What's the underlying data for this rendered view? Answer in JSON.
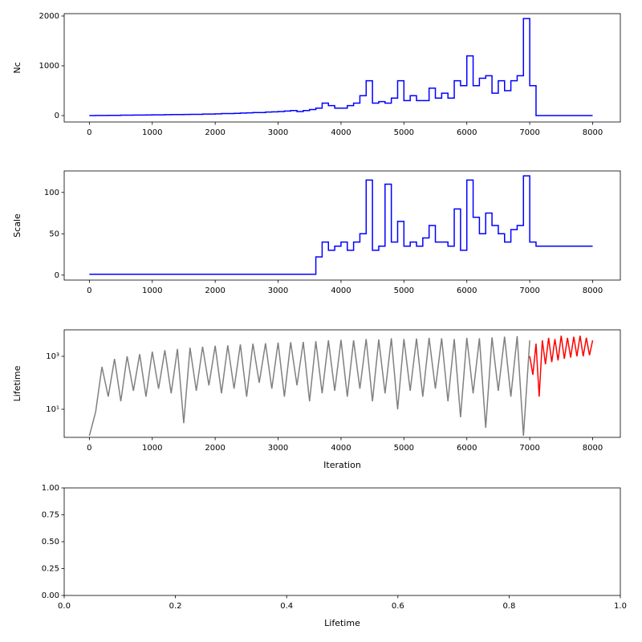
{
  "chart_data": [
    {
      "type": "line",
      "ylabel": "Nc",
      "drawstyle": "steps-post",
      "xlim": [
        -400,
        8440
      ],
      "ylim": [
        -129,
        2048
      ],
      "xticks": [
        0,
        1000,
        2000,
        3000,
        4000,
        5000,
        6000,
        7000,
        8000
      ],
      "yticks": [
        0,
        1000,
        2000
      ],
      "series": [
        {
          "color": "#0000ff",
          "x": [
            0,
            100,
            200,
            300,
            400,
            500,
            600,
            700,
            800,
            900,
            1000,
            1100,
            1200,
            1300,
            1400,
            1500,
            1600,
            1700,
            1800,
            1900,
            2000,
            2100,
            2200,
            2300,
            2400,
            2500,
            2600,
            2700,
            2800,
            2900,
            3000,
            3100,
            3200,
            3300,
            3400,
            3500,
            3600,
            3700,
            3800,
            3900,
            4000,
            4100,
            4200,
            4300,
            4400,
            4500,
            4600,
            4700,
            4800,
            4900,
            5000,
            5100,
            5200,
            5300,
            5400,
            5500,
            5600,
            5700,
            5800,
            5900,
            6000,
            6100,
            6200,
            6300,
            6400,
            6500,
            6600,
            6700,
            6800,
            6900,
            7000,
            7100,
            7200,
            7300,
            7400,
            7500,
            7600,
            7700,
            7800,
            7900,
            8000
          ],
          "values": [
            0,
            2,
            3,
            5,
            5,
            8,
            8,
            10,
            10,
            12,
            15,
            15,
            18,
            20,
            20,
            22,
            25,
            25,
            30,
            30,
            35,
            40,
            40,
            45,
            50,
            55,
            60,
            60,
            70,
            75,
            80,
            90,
            100,
            80,
            100,
            120,
            150,
            250,
            200,
            150,
            150,
            200,
            250,
            400,
            700,
            250,
            280,
            250,
            350,
            700,
            300,
            400,
            300,
            300,
            550,
            350,
            450,
            350,
            700,
            600,
            1200,
            600,
            750,
            800,
            450,
            700,
            500,
            700,
            800,
            1950,
            600,
            0,
            0,
            0,
            0,
            0,
            0,
            0,
            0,
            0,
            0
          ]
        }
      ]
    },
    {
      "type": "line",
      "ylabel": "Scale",
      "drawstyle": "steps-post",
      "xlim": [
        -400,
        8440
      ],
      "ylim": [
        -6,
        126
      ],
      "xticks": [
        0,
        1000,
        2000,
        3000,
        4000,
        5000,
        6000,
        7000,
        8000
      ],
      "yticks": [
        0,
        50,
        100
      ],
      "series": [
        {
          "color": "#0000ff",
          "x": [
            0,
            100,
            200,
            300,
            400,
            500,
            600,
            700,
            800,
            900,
            1000,
            1100,
            1200,
            1300,
            1400,
            1500,
            1600,
            1700,
            1800,
            1900,
            2000,
            2100,
            2200,
            2300,
            2400,
            2500,
            2600,
            2700,
            2800,
            2900,
            3000,
            3100,
            3200,
            3300,
            3400,
            3500,
            3600,
            3700,
            3800,
            3900,
            4000,
            4100,
            4200,
            4300,
            4400,
            4500,
            4600,
            4700,
            4800,
            4900,
            5000,
            5100,
            5200,
            5300,
            5400,
            5500,
            5600,
            5700,
            5800,
            5900,
            6000,
            6100,
            6200,
            6300,
            6400,
            6500,
            6600,
            6700,
            6800,
            6900,
            7000,
            7100,
            7200,
            7300,
            7400,
            7500,
            7600,
            7700,
            7800,
            7900,
            8000
          ],
          "values": [
            1,
            1,
            1,
            1,
            1,
            1,
            1,
            1,
            1,
            1,
            1,
            1,
            1,
            1,
            1,
            1,
            1,
            1,
            1,
            1,
            1,
            1,
            1,
            1,
            1,
            1,
            1,
            1,
            1,
            1,
            1,
            1,
            1,
            1,
            1,
            1,
            22,
            40,
            30,
            35,
            40,
            30,
            40,
            50,
            115,
            30,
            35,
            110,
            40,
            65,
            35,
            40,
            35,
            45,
            60,
            40,
            40,
            35,
            80,
            30,
            115,
            70,
            50,
            75,
            60,
            50,
            40,
            55,
            60,
            120,
            40,
            35,
            35,
            35,
            35,
            35,
            35,
            35,
            35,
            35,
            35
          ]
        }
      ]
    },
    {
      "type": "line",
      "ylabel": "Lifetime",
      "xlabel": "Iteration",
      "yscale": "log",
      "xlim": [
        -400,
        8440
      ],
      "ylim": [
        0.87,
        10000
      ],
      "xticks": [
        0,
        1000,
        2000,
        3000,
        4000,
        5000,
        6000,
        7000,
        8000
      ],
      "yticks": [
        {
          "value": 10,
          "label": "10¹"
        },
        {
          "value": 1000,
          "label": "10³"
        }
      ],
      "series": [
        {
          "color": "#808080",
          "x": [
            0,
            100,
            200,
            300,
            400,
            500,
            600,
            700,
            800,
            900,
            1000,
            1100,
            1200,
            1300,
            1400,
            1500,
            1600,
            1700,
            1800,
            1900,
            2000,
            2100,
            2200,
            2300,
            2400,
            2500,
            2600,
            2700,
            2800,
            2900,
            3000,
            3100,
            3200,
            3300,
            3400,
            3500,
            3600,
            3700,
            3800,
            3900,
            4000,
            4100,
            4200,
            4300,
            4400,
            4500,
            4600,
            4700,
            4800,
            4900,
            5000,
            5100,
            5200,
            5300,
            5400,
            5500,
            5600,
            5700,
            5800,
            5900,
            6000,
            6100,
            6200,
            6300,
            6400,
            6500,
            6600,
            6700,
            6800,
            6900,
            7000
          ],
          "values": [
            1,
            8,
            400,
            30,
            800,
            20,
            1000,
            50,
            1200,
            30,
            1500,
            60,
            1700,
            40,
            1900,
            3,
            2100,
            50,
            2300,
            80,
            2500,
            40,
            2600,
            60,
            2800,
            30,
            3000,
            100,
            3100,
            60,
            3300,
            30,
            3400,
            80,
            3500,
            20,
            3700,
            40,
            4000,
            50,
            4200,
            30,
            4000,
            60,
            4500,
            20,
            4300,
            40,
            4800,
            10,
            4500,
            50,
            4700,
            30,
            5000,
            60,
            4800,
            20,
            4500,
            5,
            5000,
            40,
            4800,
            2,
            5200,
            50,
            5500,
            30,
            5800,
            1,
            4000
          ]
        },
        {
          "color": "#ff0000",
          "x": [
            7000,
            7050,
            7100,
            7150,
            7200,
            7250,
            7300,
            7350,
            7400,
            7450,
            7500,
            7550,
            7600,
            7650,
            7700,
            7750,
            7800,
            7850,
            7900,
            7950,
            8000
          ],
          "values": [
            1000,
            200,
            3000,
            30,
            4000,
            500,
            5000,
            600,
            4500,
            700,
            6000,
            800,
            5000,
            900,
            5500,
            1000,
            6000,
            1000,
            5000,
            1100,
            4000
          ]
        }
      ]
    },
    {
      "type": "line",
      "xlabel": "Lifetime",
      "xlim": [
        0,
        1
      ],
      "ylim": [
        0,
        1
      ],
      "xticks": [
        {
          "value": 0,
          "label": "0.0"
        },
        {
          "value": 0.2,
          "label": "0.2"
        },
        {
          "value": 0.4,
          "label": "0.4"
        },
        {
          "value": 0.6,
          "label": "0.6"
        },
        {
          "value": 0.8,
          "label": "0.8"
        },
        {
          "value": 1,
          "label": "1.0"
        }
      ],
      "yticks": [
        {
          "value": 0,
          "label": "0.00"
        },
        {
          "value": 0.25,
          "label": "0.25"
        },
        {
          "value": 0.5,
          "label": "0.50"
        },
        {
          "value": 0.75,
          "label": "0.75"
        },
        {
          "value": 1,
          "label": "1.00"
        }
      ]
    }
  ]
}
